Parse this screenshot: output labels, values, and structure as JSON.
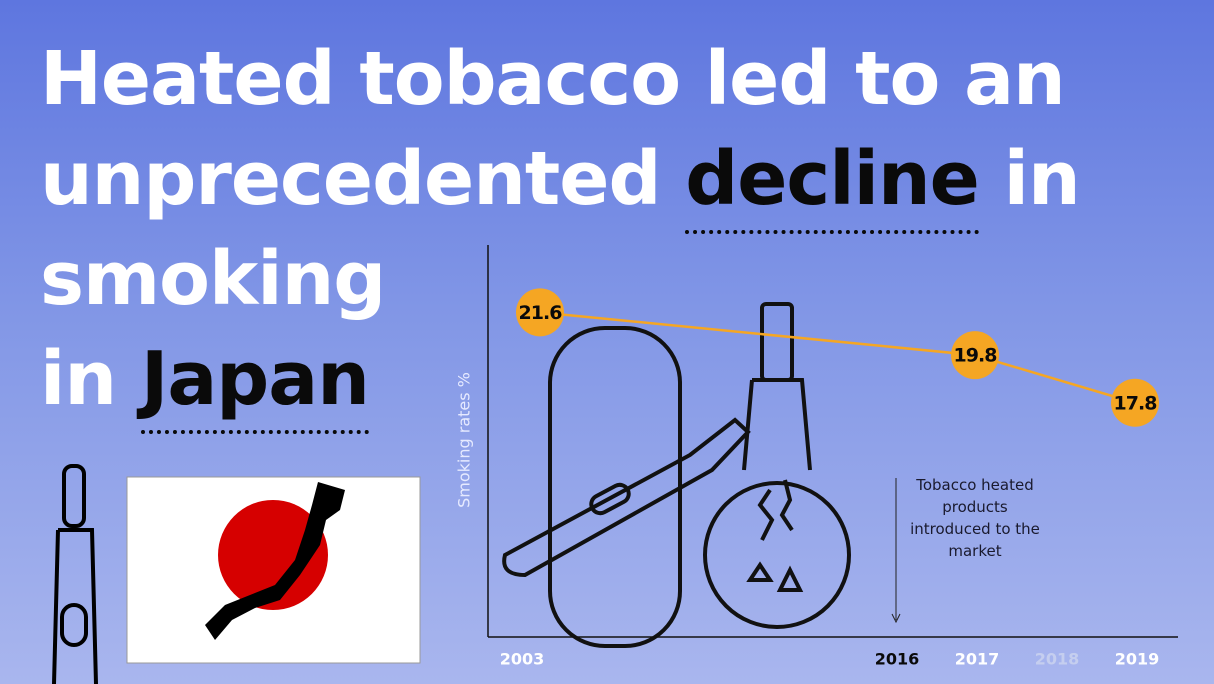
{
  "title": [
    [
      "Heated tobacco led to an"
    ],
    [
      "unprecedented",
      "decline",
      "in"
    ],
    [
      "smoking"
    ],
    [
      "in",
      "Japan"
    ]
  ],
  "chart_data": {
    "type": "line",
    "y_axis_label": "Smoking rates %",
    "categories": [
      "2003",
      "2016",
      "2017",
      "2018",
      "2019"
    ],
    "values": [
      21.6,
      null,
      19.8,
      null,
      17.8
    ],
    "color": "#f5a623",
    "ylim": [
      8,
      23
    ],
    "annotation": "Tobacco heated products introduced to the market"
  }
}
